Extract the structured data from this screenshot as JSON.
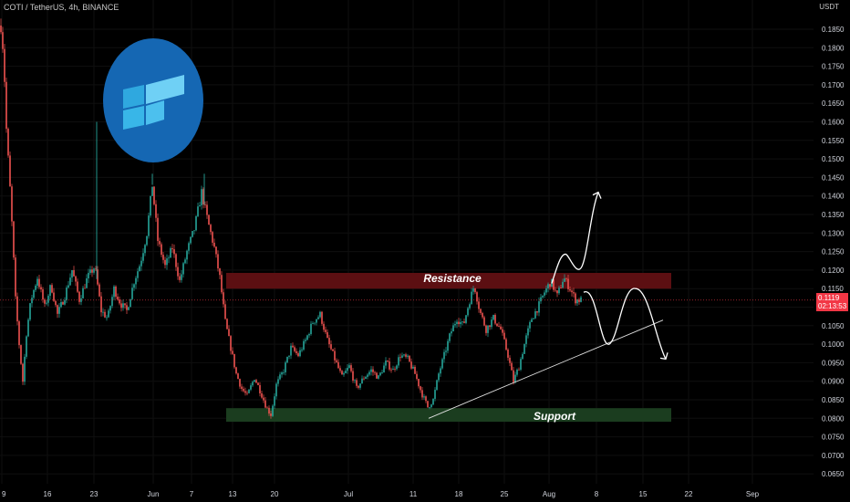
{
  "header": {
    "symbol": "COTI / TetherUS, 4h, BINANCE",
    "currency": "USDT"
  },
  "price_tag": {
    "value": "0.1119",
    "countdown": "02:13:53"
  },
  "colors": {
    "up": "#26a69a",
    "down": "#ef5350",
    "support": "#1b3d1f",
    "resistance": "#5c0f12",
    "price_tag": "#f23645",
    "logo": "#1567b3"
  },
  "chart_data": {
    "type": "candlestick",
    "y_axis": {
      "min": 0.0625,
      "max": 0.19,
      "ticks": [
        "0.0650",
        "0.0700",
        "0.0750",
        "0.0800",
        "0.0850",
        "0.0900",
        "0.0950",
        "0.1000",
        "0.1050",
        "0.1100",
        "0.1150",
        "0.1200",
        "0.1250",
        "0.1300",
        "0.1350",
        "0.1400",
        "0.1450",
        "0.1500",
        "0.1550",
        "0.1600",
        "0.1650",
        "0.1700",
        "0.1750",
        "0.1800",
        "0.1850"
      ]
    },
    "x_axis": {
      "ticks": [
        "9",
        "16",
        "23",
        "Jun",
        "7",
        "13",
        "20",
        "Jul",
        "11",
        "18",
        "25",
        "Aug",
        "8",
        "15",
        "22",
        "Sep"
      ]
    },
    "anchors": [
      {
        "t": 0,
        "p": 0.186
      },
      {
        "t": 3,
        "p": 0.178
      },
      {
        "t": 6,
        "p": 0.158
      },
      {
        "t": 10,
        "p": 0.142
      },
      {
        "t": 13,
        "p": 0.128
      },
      {
        "t": 16,
        "p": 0.112
      },
      {
        "t": 20,
        "p": 0.1
      },
      {
        "t": 24,
        "p": 0.09
      },
      {
        "t": 28,
        "p": 0.103
      },
      {
        "t": 33,
        "p": 0.112
      },
      {
        "t": 40,
        "p": 0.118
      },
      {
        "t": 48,
        "p": 0.11
      },
      {
        "t": 55,
        "p": 0.116
      },
      {
        "t": 62,
        "p": 0.108
      },
      {
        "t": 70,
        "p": 0.113
      },
      {
        "t": 78,
        "p": 0.12
      },
      {
        "t": 86,
        "p": 0.112
      },
      {
        "t": 95,
        "p": 0.118
      },
      {
        "t": 103,
        "p": 0.121
      },
      {
        "t": 110,
        "p": 0.109
      },
      {
        "t": 117,
        "p": 0.107
      },
      {
        "t": 124,
        "p": 0.115
      },
      {
        "t": 131,
        "p": 0.111
      },
      {
        "t": 138,
        "p": 0.109
      },
      {
        "t": 146,
        "p": 0.117
      },
      {
        "t": 153,
        "p": 0.122
      },
      {
        "t": 160,
        "p": 0.13
      },
      {
        "t": 166,
        "p": 0.143
      },
      {
        "t": 172,
        "p": 0.128
      },
      {
        "t": 180,
        "p": 0.121
      },
      {
        "t": 188,
        "p": 0.126
      },
      {
        "t": 196,
        "p": 0.117
      },
      {
        "t": 204,
        "p": 0.125
      },
      {
        "t": 212,
        "p": 0.131
      },
      {
        "t": 220,
        "p": 0.141
      },
      {
        "t": 227,
        "p": 0.133
      },
      {
        "t": 234,
        "p": 0.126
      },
      {
        "t": 240,
        "p": 0.118
      },
      {
        "t": 246,
        "p": 0.106
      },
      {
        "t": 252,
        "p": 0.099
      },
      {
        "t": 258,
        "p": 0.092
      },
      {
        "t": 264,
        "p": 0.088
      },
      {
        "t": 270,
        "p": 0.086
      },
      {
        "t": 278,
        "p": 0.091
      },
      {
        "t": 285,
        "p": 0.087
      },
      {
        "t": 291,
        "p": 0.083
      },
      {
        "t": 296,
        "p": 0.081
      },
      {
        "t": 302,
        "p": 0.089
      },
      {
        "t": 310,
        "p": 0.093
      },
      {
        "t": 318,
        "p": 0.099
      },
      {
        "t": 326,
        "p": 0.097
      },
      {
        "t": 334,
        "p": 0.101
      },
      {
        "t": 342,
        "p": 0.106
      },
      {
        "t": 350,
        "p": 0.108
      },
      {
        "t": 358,
        "p": 0.101
      },
      {
        "t": 366,
        "p": 0.096
      },
      {
        "t": 374,
        "p": 0.091
      },
      {
        "t": 382,
        "p": 0.094
      },
      {
        "t": 390,
        "p": 0.088
      },
      {
        "t": 398,
        "p": 0.091
      },
      {
        "t": 406,
        "p": 0.093
      },
      {
        "t": 414,
        "p": 0.091
      },
      {
        "t": 422,
        "p": 0.095
      },
      {
        "t": 430,
        "p": 0.093
      },
      {
        "t": 438,
        "p": 0.097
      },
      {
        "t": 446,
        "p": 0.096
      },
      {
        "t": 454,
        "p": 0.092
      },
      {
        "t": 461,
        "p": 0.087
      },
      {
        "t": 468,
        "p": 0.083
      },
      {
        "t": 474,
        "p": 0.085
      },
      {
        "t": 480,
        "p": 0.092
      },
      {
        "t": 486,
        "p": 0.097
      },
      {
        "t": 493,
        "p": 0.103
      },
      {
        "t": 500,
        "p": 0.107
      },
      {
        "t": 507,
        "p": 0.105
      },
      {
        "t": 513,
        "p": 0.111
      },
      {
        "t": 519,
        "p": 0.116
      },
      {
        "t": 525,
        "p": 0.109
      },
      {
        "t": 532,
        "p": 0.104
      },
      {
        "t": 540,
        "p": 0.107
      },
      {
        "t": 548,
        "p": 0.104
      },
      {
        "t": 556,
        "p": 0.097
      },
      {
        "t": 562,
        "p": 0.09
      },
      {
        "t": 568,
        "p": 0.094
      },
      {
        "t": 575,
        "p": 0.101
      },
      {
        "t": 582,
        "p": 0.107
      },
      {
        "t": 589,
        "p": 0.11
      },
      {
        "t": 596,
        "p": 0.114
      },
      {
        "t": 603,
        "p": 0.117
      },
      {
        "t": 610,
        "p": 0.113
      },
      {
        "t": 617,
        "p": 0.118
      },
      {
        "t": 624,
        "p": 0.115
      },
      {
        "t": 630,
        "p": 0.112
      },
      {
        "t": 637,
        "p": 0.1119
      }
    ],
    "spikes": [
      {
        "t": 105,
        "p": 0.16
      },
      {
        "t": 166,
        "p": 0.146
      },
      {
        "t": 223,
        "p": 0.146
      }
    ],
    "resistance": {
      "label": "Resistance",
      "low": 0.1167,
      "high": 0.1185
    },
    "support": {
      "label": "Support",
      "low": 0.0798,
      "high": 0.082
    },
    "trendline": [
      {
        "t": 470,
        "p": 0.08
      },
      {
        "t": 727,
        "p": 0.1065
      }
    ],
    "current_price": 0.1119,
    "projection_up": [
      {
        "t": 605,
        "p": 0.1164
      },
      {
        "t": 620,
        "p": 0.1243
      },
      {
        "t": 634,
        "p": 0.1185
      },
      {
        "t": 656,
        "p": 0.141
      }
    ],
    "projection_down": [
      {
        "t": 640,
        "p": 0.114
      },
      {
        "t": 668,
        "p": 0.1
      },
      {
        "t": 697,
        "p": 0.115
      },
      {
        "t": 730,
        "p": 0.096
      }
    ]
  }
}
